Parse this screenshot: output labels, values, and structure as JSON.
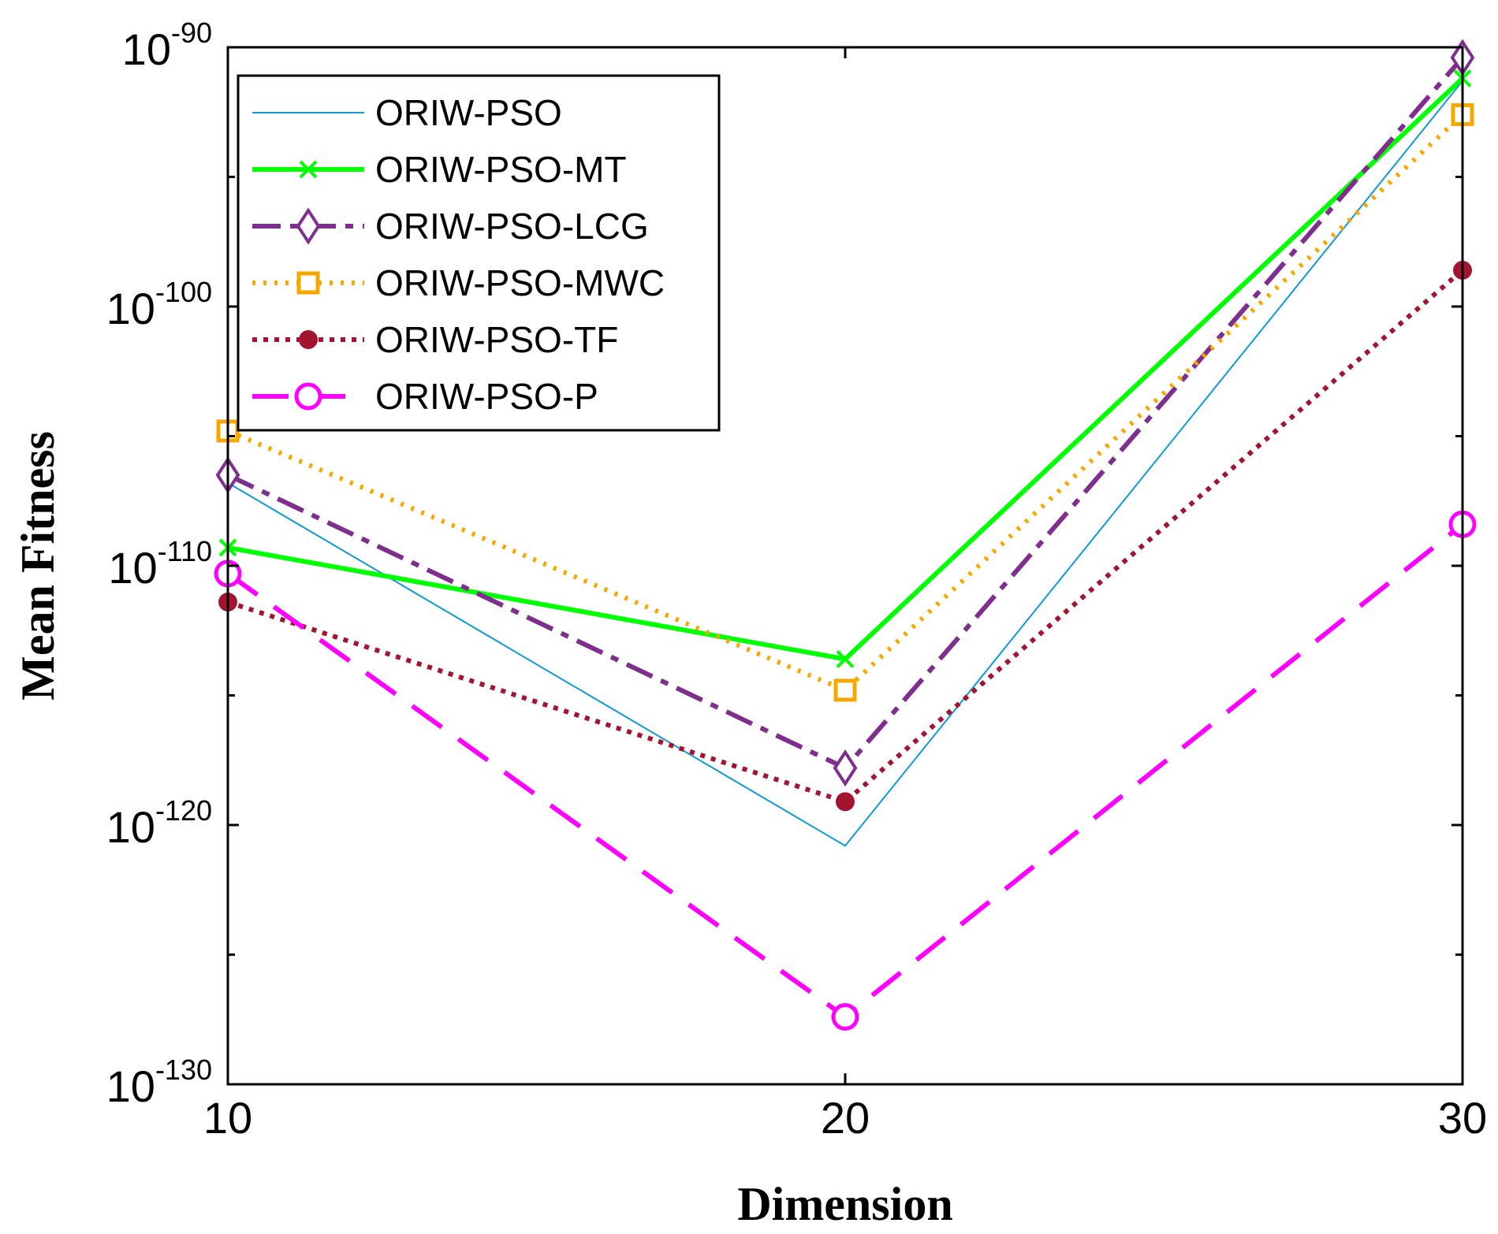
{
  "chart_data": {
    "type": "line",
    "title": "",
    "xlabel": "Dimension",
    "ylabel": "Mean Fitness",
    "yscale": "log",
    "x": [
      10,
      20,
      30
    ],
    "xlim": [
      10,
      30
    ],
    "ylim_exp": [
      -130,
      -90
    ],
    "x_ticks": [
      {
        "value": 10,
        "label": "10"
      },
      {
        "value": 20,
        "label": "20"
      },
      {
        "value": 30,
        "label": "30"
      }
    ],
    "y_ticks": [
      {
        "exp": -130,
        "base": "10",
        "exp_label": "-130"
      },
      {
        "exp": -120,
        "base": "10",
        "exp_label": "-120"
      },
      {
        "exp": -110,
        "base": "10",
        "exp_label": "-110"
      },
      {
        "exp": -100,
        "base": "10",
        "exp_label": "-100"
      },
      {
        "exp": -90,
        "base": "10",
        "exp_label": "-90"
      }
    ],
    "y_minor_ticks_exp": [
      -125,
      -115,
      -105,
      -95
    ],
    "grid": false,
    "legend_position": "top-left",
    "series": [
      {
        "name": "ORIW-PSO",
        "log10_values": [
          -106.8,
          -120.8,
          -91.3
        ],
        "color": "#0d9ad6",
        "dash": "",
        "width": 2,
        "marker": "none"
      },
      {
        "name": "ORIW-PSO-MT",
        "log10_values": [
          -109.3,
          -113.6,
          -91.2
        ],
        "color": "#00ff00",
        "dash": "",
        "width": 6,
        "marker": "x"
      },
      {
        "name": "ORIW-PSO-LCG",
        "log10_values": [
          -106.5,
          -117.8,
          -90.4
        ],
        "color": "#7e2f8e",
        "dash": "36 12 10 12",
        "width": 6,
        "marker": "diamond"
      },
      {
        "name": "ORIW-PSO-MWC",
        "log10_values": [
          -104.8,
          -114.8,
          -92.6
        ],
        "color": "#f7a800",
        "dash": "4 10",
        "width": 6,
        "marker": "square"
      },
      {
        "name": "ORIW-PSO-TF",
        "log10_values": [
          -111.4,
          -119.1,
          -98.6
        ],
        "color": "#a2142f",
        "dash": "6 8",
        "width": 6,
        "marker": "dot"
      },
      {
        "name": "ORIW-PSO-P",
        "log10_values": [
          -110.3,
          -127.4,
          -108.4
        ],
        "color": "#ff00ff",
        "dash": "46 26",
        "width": 6,
        "marker": "circle"
      }
    ]
  }
}
